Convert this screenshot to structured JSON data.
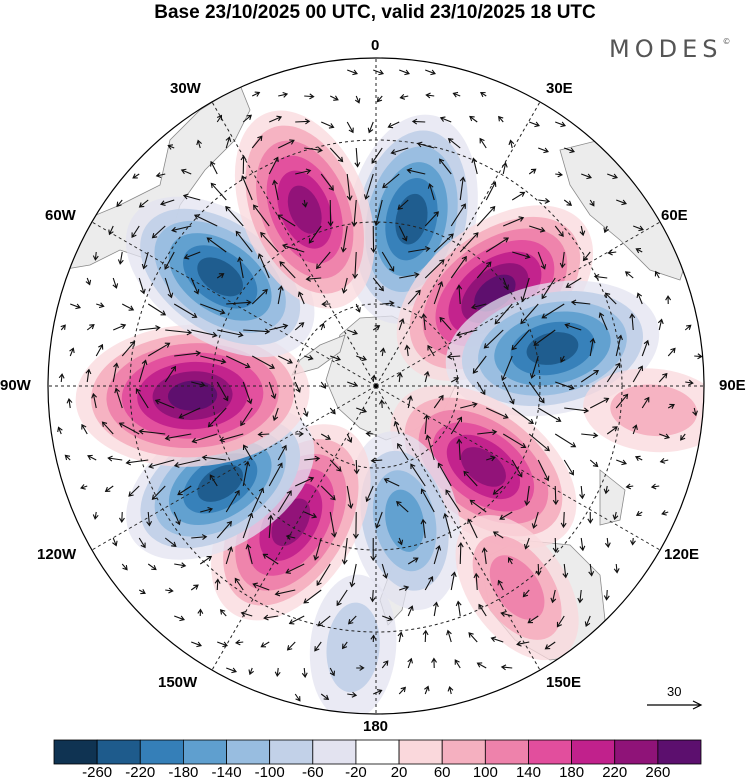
{
  "title": "Base 23/10/2025 00 UTC, valid 23/10/2025 18 UTC",
  "brand": "MODES",
  "brand_mark": "©",
  "longitude_labels": {
    "lon_0": "0",
    "lon_30e": "30E",
    "lon_60e": "60E",
    "lon_90e": "90E",
    "lon_120e": "120E",
    "lon_150e": "150E",
    "lon_180": "180",
    "lon_150w": "150W",
    "lon_120w": "120W",
    "lon_90w": "90W",
    "lon_60w": "60W",
    "lon_30w": "30W"
  },
  "vector_reference": "30",
  "colorbar": {
    "colors": [
      "#0f3352",
      "#1e5b8c",
      "#357fb8",
      "#5f9fcf",
      "#98bde0",
      "#c2d1e8",
      "#e3e3f0",
      "#ffffff",
      "#fad8dc",
      "#f5b0c0",
      "#ee82ab",
      "#e24e9d",
      "#c1218c",
      "#8f1378",
      "#5c0f6e"
    ],
    "labels": [
      "-260",
      "-220",
      "-180",
      "-140",
      "-100",
      "-60",
      "-20",
      "20",
      "60",
      "100",
      "140",
      "180",
      "220",
      "260"
    ]
  },
  "anomaly_centers": [
    {
      "lon": 12,
      "colat": 0.52,
      "value": -200
    },
    {
      "lon": 52,
      "colat": 0.46,
      "value": 230
    },
    {
      "lon": 78,
      "colat": 0.55,
      "value": -210
    },
    {
      "lon": 127,
      "colat": 0.41,
      "value": 200
    },
    {
      "lon": 168,
      "colat": 0.42,
      "value": -130
    },
    {
      "lon": 145,
      "colat": 0.75,
      "value": 90
    },
    {
      "lon": -148,
      "colat": 0.49,
      "value": 210
    },
    {
      "lon": -122,
      "colat": 0.56,
      "value": -190
    },
    {
      "lon": -93,
      "colat": 0.56,
      "value": 250
    },
    {
      "lon": -55,
      "colat": 0.58,
      "value": -200
    },
    {
      "lon": -22,
      "colat": 0.58,
      "value": 190
    },
    {
      "lon": 95,
      "colat": 0.85,
      "value": 40
    },
    {
      "lon": -175,
      "colat": 0.8,
      "value": -50
    }
  ]
}
